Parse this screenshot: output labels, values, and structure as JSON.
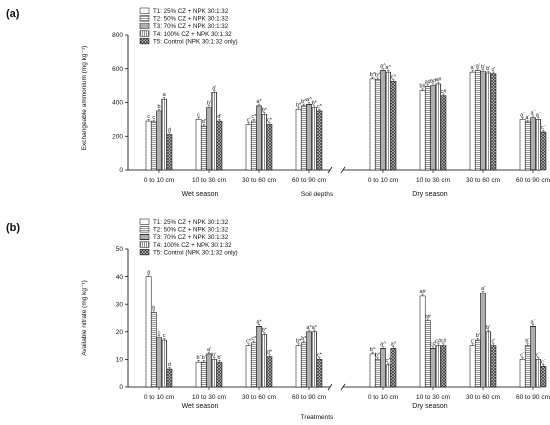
{
  "chart_data": [
    {
      "type": "bar",
      "panel_label": "(a)",
      "title": "",
      "ylabel": "Exchangeable ammonium (mg kg⁻¹)",
      "ylim": [
        0,
        800
      ],
      "yticks": [
        0,
        200,
        400,
        600,
        800
      ],
      "xlabel": "Soil depths",
      "groups": [
        {
          "name": "Wet season",
          "categories": [
            "0 to 10 cm",
            "10 to 30 cm",
            "30 to 60 cm",
            "60 to 90 cm"
          ]
        },
        {
          "name": "Dry season",
          "categories": [
            "0 to 10 cm",
            "10 to 30 cm",
            "30 to 60 cm",
            "60 to 90 cm"
          ]
        }
      ],
      "legend_position": "top-left",
      "series": [
        {
          "name": "T1: 25% CZ  +  NPK 30:1:32",
          "values": [
            290,
            300,
            270,
            360,
            540,
            470,
            580,
            300
          ],
          "labels": [
            "c",
            "c",
            "c'",
            "b*",
            "b^",
            "b#",
            "a'",
            "a¨"
          ]
        },
        {
          "name": "T2: 50% CZ  +  NPK 30:1:32",
          "values": [
            285,
            260,
            290,
            380,
            535,
            495,
            590,
            285
          ],
          "labels": [
            "c",
            "d'",
            "c*",
            "b^",
            "b^",
            "a#",
            "a'",
            "a¨"
          ]
        },
        {
          "name": "T3: 70% CZ  +  NPK 30:1:32",
          "values": [
            350,
            370,
            380,
            390,
            590,
            500,
            585,
            310
          ],
          "labels": [
            "b",
            "b'",
            "a*",
            "a^",
            "a^",
            "a#",
            "b'",
            "a¨"
          ]
        },
        {
          "name": "T4: 100% CZ  +  NPK 30:1:32",
          "values": [
            420,
            460,
            330,
            370,
            580,
            510,
            575,
            300
          ],
          "labels": [
            "a",
            "a'",
            "b*",
            "b*",
            "a^",
            "a#",
            "b'",
            "a¨"
          ]
        },
        {
          "name": "T5: Control (NPK 30:1:32 only)",
          "values": [
            210,
            290,
            270,
            350,
            525,
            440,
            570,
            225
          ],
          "labels": [
            "d",
            "d'",
            "c*",
            "c*",
            "c^",
            "c#",
            "c'",
            "c¨"
          ]
        }
      ]
    },
    {
      "type": "bar",
      "panel_label": "(b)",
      "title": "",
      "ylabel": "Available nitrate (mg kg⁻¹)",
      "ylim": [
        0,
        50
      ],
      "yticks": [
        0,
        10,
        20,
        30,
        40,
        50
      ],
      "xlabel": "Treatments",
      "groups": [
        {
          "name": "Wet season",
          "categories": [
            "0 to 10 cm",
            "10 to 30 cm",
            "30 to 60 cm",
            "60 to 90 cm"
          ]
        },
        {
          "name": "Dry season",
          "categories": [
            "0 to 10 cm",
            "10 to 30 cm",
            "30 to 60 cm",
            "60 to 90 cm"
          ]
        }
      ],
      "legend_position": "top-left",
      "series": [
        {
          "name": "T1: 25% CZ  +  NPK 30:1:32",
          "values": [
            40,
            9,
            15,
            15,
            12,
            33,
            15,
            10
          ],
          "labels": [
            "a",
            "b'",
            "c*",
            "b*",
            "b^",
            "a#",
            "c'",
            "c¨"
          ]
        },
        {
          "name": "T2: 50% CZ  +  NPK 30:1:32",
          "values": [
            27,
            9,
            16,
            16,
            10,
            24,
            17,
            15
          ],
          "labels": [
            "b",
            "b'",
            "c*",
            "b*",
            "b^",
            "b#",
            "b'",
            "b¨"
          ]
        },
        {
          "name": "T3: 70% CZ  +  NPK 30:1:32",
          "values": [
            18,
            12,
            22,
            20,
            14,
            14,
            34,
            22
          ],
          "labels": [
            "c",
            "a'",
            "a*",
            "a*",
            "a^",
            "c#",
            "a'",
            "a¨"
          ]
        },
        {
          "name": "T4: 100% CZ  +  NPK 30:1:32",
          "values": [
            17,
            10,
            19,
            20,
            8,
            15,
            20,
            10
          ],
          "labels": [
            "c",
            "b'",
            "b*",
            "a*",
            "c^",
            "c#",
            "b'",
            "c¨"
          ]
        },
        {
          "name": "T5: Control (NPK 30:1:32 only)",
          "values": [
            6.5,
            9,
            11,
            10,
            14,
            15,
            15,
            7.5
          ],
          "labels": [
            "d",
            "b'",
            "d*",
            "c*",
            "a^",
            "c#",
            "c'",
            "c¨"
          ]
        }
      ]
    }
  ]
}
